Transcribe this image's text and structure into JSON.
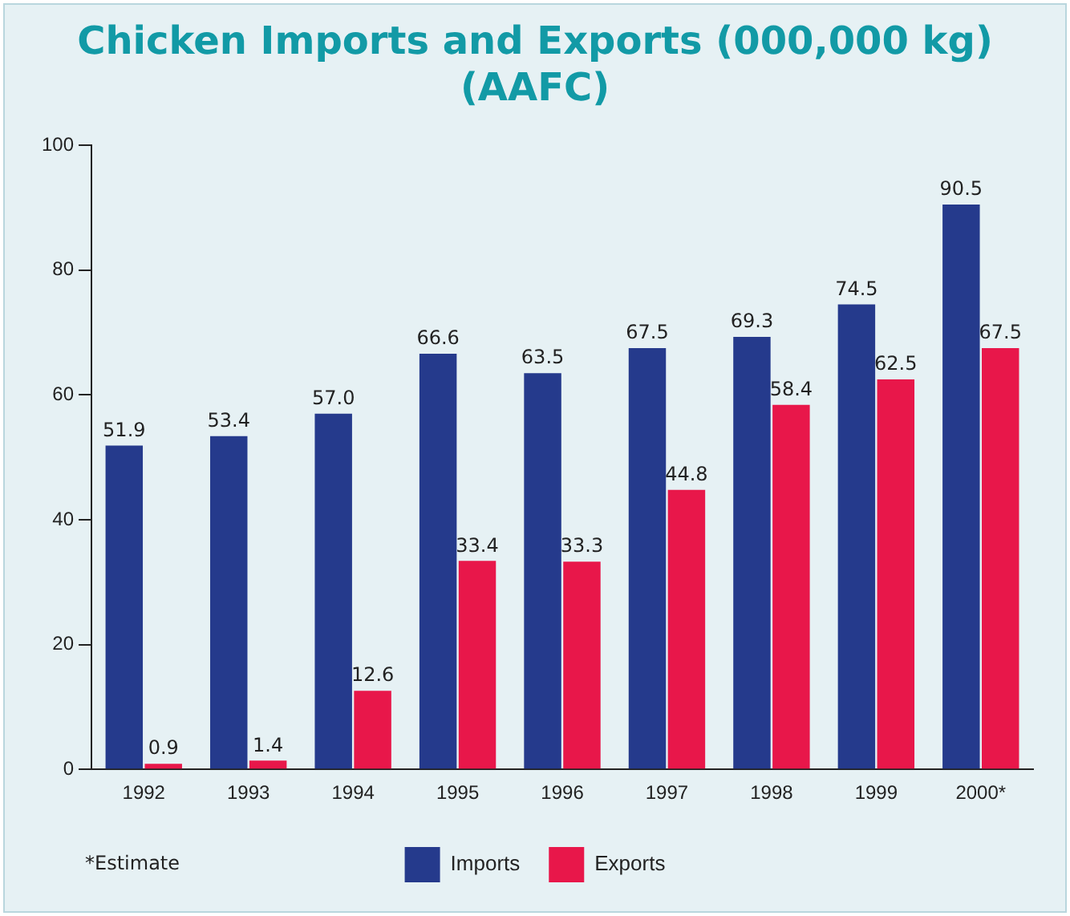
{
  "chart_data": {
    "type": "bar",
    "title": "Chicken Imports and Exports (000,000 kg)\n(AAFC)",
    "categories": [
      "1992",
      "1993",
      "1994",
      "1995",
      "1996",
      "1997",
      "1998",
      "1999",
      "2000*"
    ],
    "series": [
      {
        "name": "Imports",
        "color": "#253a8c",
        "values": [
          51.9,
          53.4,
          57.0,
          66.6,
          63.5,
          67.5,
          69.3,
          74.5,
          90.5
        ],
        "value_labels": [
          "51.9",
          "53.4",
          "57.0",
          "66.6",
          "63.5",
          "67.5",
          "69.3",
          "74.5",
          "90.5"
        ]
      },
      {
        "name": "Exports",
        "color": "#e8174a",
        "values": [
          0.9,
          1.4,
          12.6,
          33.4,
          33.3,
          44.8,
          58.4,
          62.5,
          67.5
        ],
        "value_labels": [
          "0.9",
          "1.4",
          "12.6",
          "33.4",
          "33.3",
          "44.8",
          "58.4",
          "62.5",
          "67.5"
        ]
      }
    ],
    "ylim": [
      0,
      100
    ],
    "yticks": [
      0,
      20,
      40,
      60,
      80,
      100
    ],
    "grid": false,
    "legend": "bottom",
    "annotations": [
      "*Estimate"
    ]
  }
}
